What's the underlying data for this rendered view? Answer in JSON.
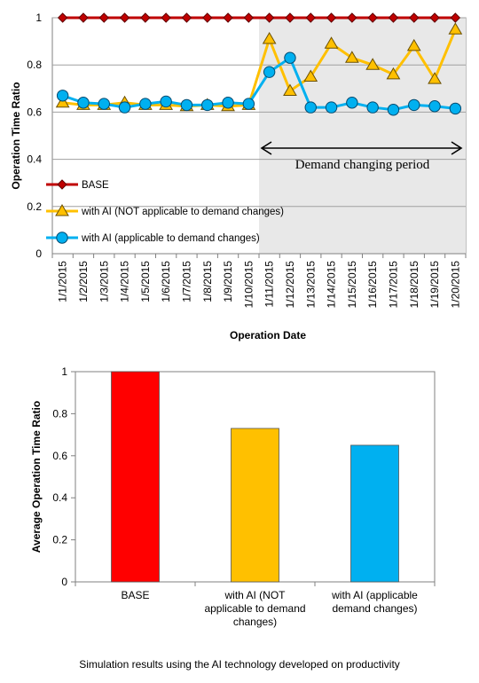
{
  "caption": "Simulation results using the AI technology developed on productivity",
  "colors": {
    "base": "#c00000",
    "not_applicable": "#ffc000",
    "applicable": "#00b0f0",
    "shade": "#e8e8e8",
    "grid": "#a0a0a0"
  },
  "chart_data": [
    {
      "type": "line",
      "title": "",
      "xlabel": "Operation Date",
      "ylabel": "Operation Time Ratio",
      "ylim": [
        0,
        1
      ],
      "yticks": [
        0,
        0.2,
        0.4,
        0.6,
        0.8,
        1
      ],
      "ytick_labels": [
        "0",
        "0.2",
        "0.4",
        "0.6",
        "0.8",
        "1"
      ],
      "grid": true,
      "legend_position": "bottom-left",
      "x": [
        "1/1/2015",
        "1/2/2015",
        "1/3/2015",
        "1/4/2015",
        "1/5/2015",
        "1/6/2015",
        "1/7/2015",
        "1/8/2015",
        "1/9/2015",
        "1/10/2015",
        "1/11/2015",
        "1/12/2015",
        "1/13/2015",
        "1/14/2015",
        "1/15/2015",
        "1/16/2015",
        "1/17/2015",
        "1/18/2015",
        "1/19/2015",
        "1/20/2015"
      ],
      "series": [
        {
          "name": "BASE",
          "marker": "diamond",
          "color": "#c00000",
          "values": [
            1,
            1,
            1,
            1,
            1,
            1,
            1,
            1,
            1,
            1,
            1,
            1,
            1,
            1,
            1,
            1,
            1,
            1,
            1,
            1
          ]
        },
        {
          "name": "with AI (NOT applicable to demand changes)",
          "marker": "triangle",
          "color": "#ffc000",
          "values": [
            0.64,
            0.63,
            0.63,
            0.64,
            0.63,
            0.63,
            0.625,
            0.63,
            0.625,
            0.63,
            0.91,
            0.69,
            0.75,
            0.89,
            0.83,
            0.8,
            0.76,
            0.88,
            0.74,
            0.95
          ]
        },
        {
          "name": "with AI (applicable to demand changes)",
          "marker": "circle",
          "color": "#00b0f0",
          "values": [
            0.67,
            0.64,
            0.635,
            0.62,
            0.635,
            0.645,
            0.63,
            0.63,
            0.64,
            0.635,
            0.77,
            0.83,
            0.62,
            0.62,
            0.64,
            0.62,
            0.61,
            0.63,
            0.625,
            0.615
          ]
        }
      ],
      "annotation": {
        "text": "Demand changing period",
        "from": "1/11/2015",
        "to": "1/20/2015"
      }
    },
    {
      "type": "bar",
      "title": "",
      "xlabel": "",
      "ylabel": "Average Operation Time Ratio",
      "ylim": [
        0,
        1
      ],
      "yticks": [
        0,
        0.2,
        0.4,
        0.6,
        0.8,
        1
      ],
      "ytick_labels": [
        "0",
        "0.2",
        "0.4",
        "0.6",
        "0.8",
        "1"
      ],
      "grid": false,
      "categories": [
        [
          "BASE"
        ],
        [
          "with AI (NOT",
          "applicable to demand",
          "changes)"
        ],
        [
          "with AI (applicable",
          "demand changes)"
        ]
      ],
      "values": [
        1.0,
        0.73,
        0.65
      ],
      "bar_colors": [
        "#ff0000",
        "#ffc000",
        "#00b0f0"
      ]
    }
  ]
}
